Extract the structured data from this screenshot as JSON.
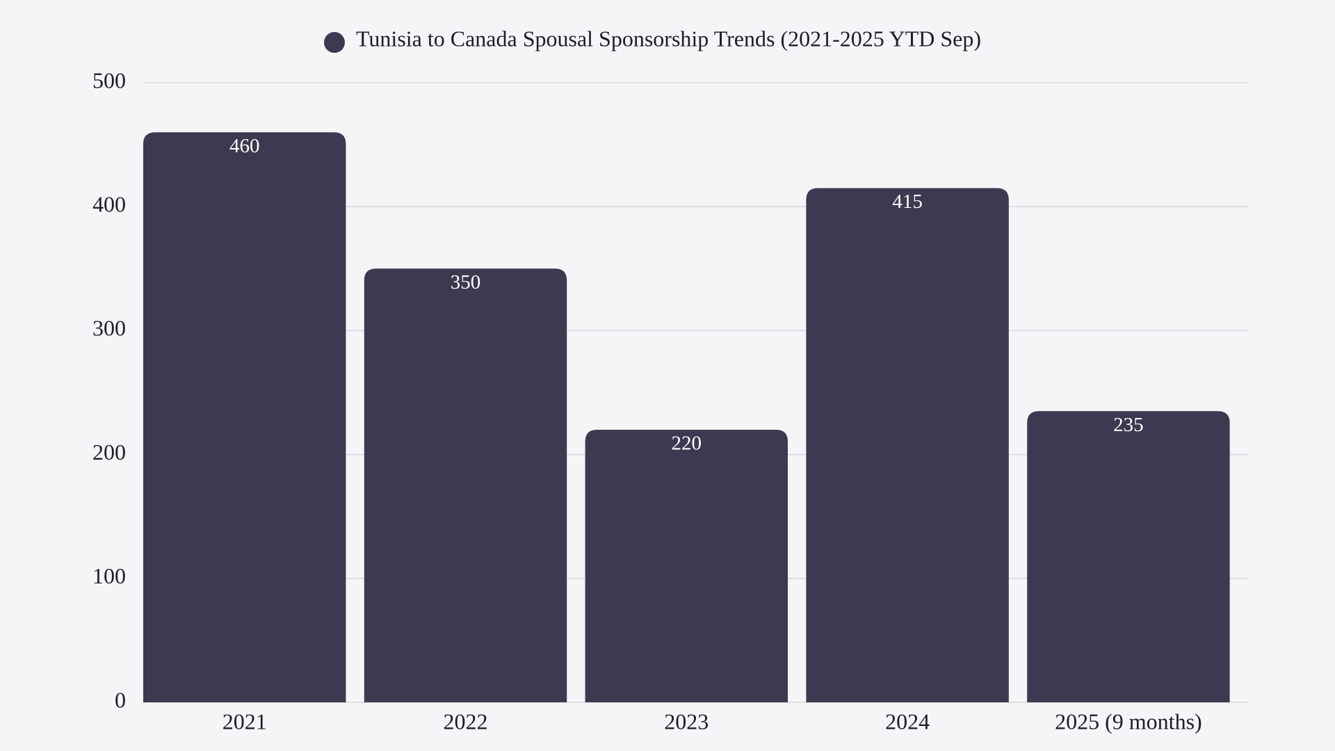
{
  "chart_data": {
    "type": "bar",
    "categories": [
      "2021",
      "2022",
      "2023",
      "2024",
      "2025 (9 months)"
    ],
    "series": [
      {
        "name": "Tunisia to Canada Spousal Sponsorship Trends (2021-2025 YTD Sep)",
        "color": "#3d3950",
        "values": [
          460,
          350,
          220,
          415,
          235
        ]
      }
    ],
    "ylim": [
      0,
      500
    ],
    "yticks": [
      0,
      100,
      200,
      300,
      400,
      500
    ],
    "grid": true,
    "legend": "top"
  }
}
